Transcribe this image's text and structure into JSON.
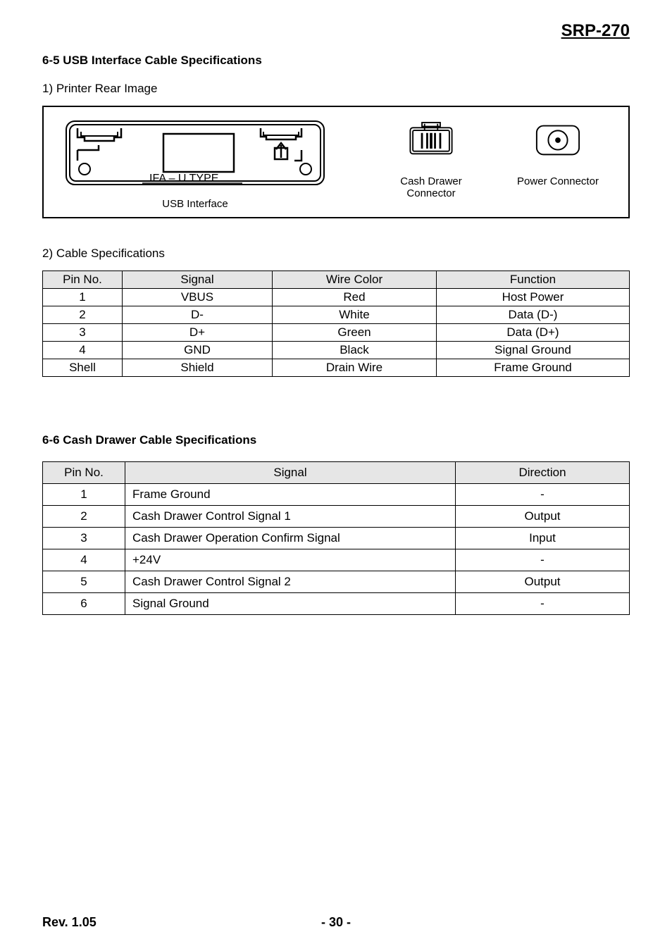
{
  "model": "SRP-270",
  "section65": {
    "title": "6-5 USB Interface Cable Specifications",
    "sub1": "1) Printer Rear Image",
    "usb_diagram_text": "IFA – U TYPE",
    "usb_label": "USB Interface",
    "cash_label": "Cash Drawer Connector",
    "power_label": "Power Connector",
    "sub2": "2) Cable Specifications",
    "table": {
      "headers": [
        "Pin No.",
        "Signal",
        "Wire Color",
        "Function"
      ],
      "rows": [
        [
          "1",
          "VBUS",
          "Red",
          "Host Power"
        ],
        [
          "2",
          "D-",
          "White",
          "Data (D-)"
        ],
        [
          "3",
          "D+",
          "Green",
          "Data (D+)"
        ],
        [
          "4",
          "GND",
          "Black",
          "Signal Ground"
        ],
        [
          "Shell",
          "Shield",
          "Drain Wire",
          "Frame Ground"
        ]
      ]
    }
  },
  "section66": {
    "title": "6-6 Cash Drawer Cable Specifications",
    "table": {
      "headers": [
        "Pin No.",
        "Signal",
        "Direction"
      ],
      "rows": [
        [
          "1",
          "Frame Ground",
          "-"
        ],
        [
          "2",
          "Cash Drawer Control Signal 1",
          "Output"
        ],
        [
          "3",
          "Cash Drawer Operation Confirm Signal",
          "Input"
        ],
        [
          "4",
          "+24V",
          "-"
        ],
        [
          "5",
          "Cash Drawer Control Signal 2",
          "Output"
        ],
        [
          "6",
          "Signal Ground",
          "-"
        ]
      ]
    }
  },
  "footer": {
    "rev": "Rev. 1.05",
    "page": "- 30 -"
  },
  "colors": {
    "table_header_bg": "#e6e6e6",
    "border": "#000000",
    "text": "#000000",
    "bg": "#ffffff"
  }
}
